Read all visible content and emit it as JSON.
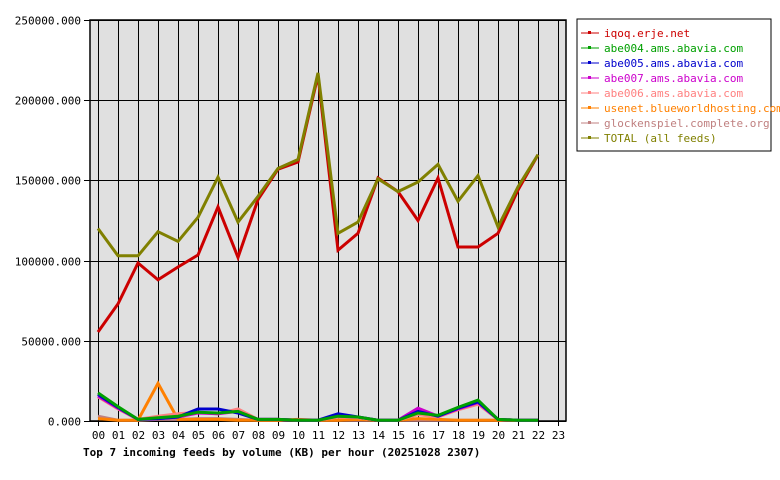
{
  "chart_data": {
    "type": "line",
    "title": "Top 7 incoming feeds by volume (KB) per hour (20251028 2307)",
    "xlabel": "",
    "ylabel": "",
    "ylim": [
      0,
      250000
    ],
    "yticks": [
      "0.000",
      "50000.000",
      "100000.000",
      "150000.000",
      "200000.000",
      "250000.000"
    ],
    "ytick_values": [
      0,
      50000,
      100000,
      150000,
      200000,
      250000
    ],
    "grid": true,
    "legend_position": "right",
    "categories": [
      "00",
      "01",
      "02",
      "03",
      "04",
      "05",
      "06",
      "07",
      "08",
      "09",
      "10",
      "11",
      "12",
      "13",
      "14",
      "15",
      "16",
      "17",
      "18",
      "19",
      "20",
      "21",
      "22",
      "23"
    ],
    "series": [
      {
        "name": "iqoq.erje.net",
        "color": "#cc0000",
        "values": [
          55500,
          73000,
          98500,
          88000,
          96000,
          103500,
          133500,
          102000,
          138000,
          157000,
          161500,
          215500,
          106500,
          117000,
          151500,
          143000,
          125000,
          151500,
          108500,
          108500,
          117000,
          144000,
          166000
        ]
      },
      {
        "name": "abe004.ams.abavia.com",
        "color": "#00a000",
        "values": [
          17500,
          9000,
          1000,
          2000,
          3000,
          5500,
          5000,
          6000,
          1000,
          1000,
          500,
          500,
          3000,
          2500,
          500,
          500,
          5000,
          3500,
          8500,
          13000,
          1000,
          500,
          500
        ]
      },
      {
        "name": "abe005.ams.abavia.com",
        "color": "#0000cc",
        "values": [
          16500,
          8500,
          1000,
          1500,
          2500,
          7500,
          7500,
          5000,
          1000,
          1000,
          500,
          500,
          4500,
          2500,
          500,
          500,
          6000,
          3000,
          8000,
          12000,
          1000,
          500,
          500
        ]
      },
      {
        "name": "abe007.ams.abavia.com",
        "color": "#cc00cc",
        "values": [
          15500,
          8000,
          1000,
          1500,
          2500,
          5000,
          4500,
          6000,
          1000,
          1000,
          500,
          500,
          3000,
          2500,
          500,
          500,
          8000,
          3000,
          7500,
          11500,
          1000,
          500,
          500
        ]
      },
      {
        "name": "abe006.ams.abavia.com",
        "color": "#ff8080",
        "values": [
          15000,
          7500,
          1000,
          3000,
          4500,
          5500,
          4500,
          7500,
          1000,
          1000,
          500,
          500,
          2500,
          2000,
          500,
          500,
          4000,
          2500,
          7000,
          10500,
          1000,
          500,
          500
        ]
      },
      {
        "name": "usenet.blueworldhosting.com",
        "color": "#ff8000",
        "values": [
          1500,
          500,
          500,
          23500,
          1000,
          1000,
          1000,
          500,
          500,
          500,
          1000,
          500,
          500,
          1000,
          500,
          500,
          1500,
          1000,
          500,
          500,
          500,
          500,
          500
        ]
      },
      {
        "name": "glockenspiel.complete.org",
        "color": "#c08080",
        "values": [
          3000,
          500,
          500,
          1000,
          1000,
          1500,
          1500,
          1000,
          500,
          500,
          500,
          500,
          500,
          500,
          500,
          500,
          500,
          500,
          500,
          500,
          500,
          500,
          500
        ]
      },
      {
        "name": "TOTAL (all feeds)",
        "color": "#808000",
        "values": [
          120000,
          103000,
          103000,
          118000,
          112000,
          127000,
          152000,
          124000,
          140000,
          157500,
          163000,
          217000,
          117000,
          124000,
          151000,
          143000,
          149000,
          160000,
          137000,
          153000,
          121000,
          146000,
          166000
        ]
      }
    ]
  },
  "legend": {
    "items": [
      {
        "label": "iqoq.erje.net",
        "color": "#cc0000"
      },
      {
        "label": "abe004.ams.abavia.com",
        "color": "#00a000"
      },
      {
        "label": "abe005.ams.abavia.com",
        "color": "#0000cc"
      },
      {
        "label": "abe007.ams.abavia.com",
        "color": "#cc00cc"
      },
      {
        "label": "abe006.ams.abavia.com",
        "color": "#ff8080"
      },
      {
        "label": "usenet.blueworldhosting.com",
        "color": "#ff8000"
      },
      {
        "label": "glockenspiel.complete.org",
        "color": "#c08080"
      },
      {
        "label": "TOTAL (all feeds)",
        "color": "#808000"
      }
    ]
  },
  "colors": {
    "plot_background": "#e0e0e0",
    "grid": "#000000",
    "page_background": "#ffffff"
  }
}
